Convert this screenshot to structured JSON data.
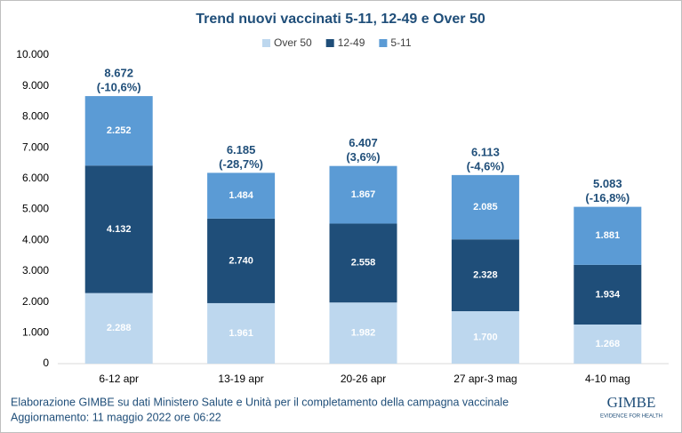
{
  "chart_data": {
    "type": "stacked_bar",
    "title": "Trend nuovi vaccinati 5-11, 12-49 e Over 50",
    "categories": [
      "6-12 apr",
      "13-19 apr",
      "20-26 apr",
      "27 apr-3 mag",
      "4-10 mag"
    ],
    "series": [
      {
        "name": "Over 50",
        "color": "#bdd7ee",
        "values": [
          2288,
          1961,
          1982,
          1700,
          1268
        ],
        "value_labels": [
          "2.288",
          "1.961",
          "1.982",
          "1.700",
          "1.268"
        ]
      },
      {
        "name": "12-49",
        "color": "#1f4e79",
        "values": [
          4132,
          2740,
          2558,
          2328,
          1934
        ],
        "value_labels": [
          "4.132",
          "2.740",
          "2.558",
          "2.328",
          "1.934"
        ]
      },
      {
        "name": "5-11",
        "color": "#5b9bd5",
        "values": [
          2252,
          1484,
          1867,
          2085,
          1881
        ],
        "value_labels": [
          "2.252",
          "1.484",
          "1.867",
          "2.085",
          "1.881"
        ]
      }
    ],
    "totals": {
      "values": [
        8672,
        6185,
        6407,
        6113,
        5083
      ],
      "value_labels": [
        "8.672",
        "6.185",
        "6.407",
        "6.113",
        "5.083"
      ]
    },
    "changes": {
      "values": [
        -10.6,
        -28.7,
        3.6,
        -4.6,
        -16.8
      ],
      "value_labels": [
        "(-10,6%)",
        "(-28,7%)",
        "(3,6%)",
        "(-4,6%)",
        "(-16,8%)"
      ]
    },
    "ylim": [
      0,
      10000
    ],
    "yticks": [
      0,
      {
        "value": 1000,
        "label": "1.000"
      },
      {
        "value": 2000,
        "label": "2.000"
      },
      {
        "value": 3000,
        "label": "3.000"
      },
      {
        "value": 4000,
        "label": "4.000"
      },
      {
        "value": 5000,
        "label": "5.000"
      },
      {
        "value": 6000,
        "label": "6.000"
      },
      {
        "value": 7000,
        "label": "7.000"
      },
      {
        "value": 8000,
        "label": "8.000"
      },
      {
        "value": 9000,
        "label": "9.000"
      },
      {
        "value": 10000,
        "label": "10.000"
      }
    ],
    "grid": false,
    "legend": "top"
  },
  "footer": {
    "source": "Elaborazione GIMBE su dati Ministero Salute e Unità per il completamento della campagna vaccinale",
    "update": "Aggiornamento: 11 maggio 2022 ore 06:22"
  },
  "logo": {
    "name": "GIMBE",
    "tagline": "EVIDENCE FOR HEALTH"
  }
}
